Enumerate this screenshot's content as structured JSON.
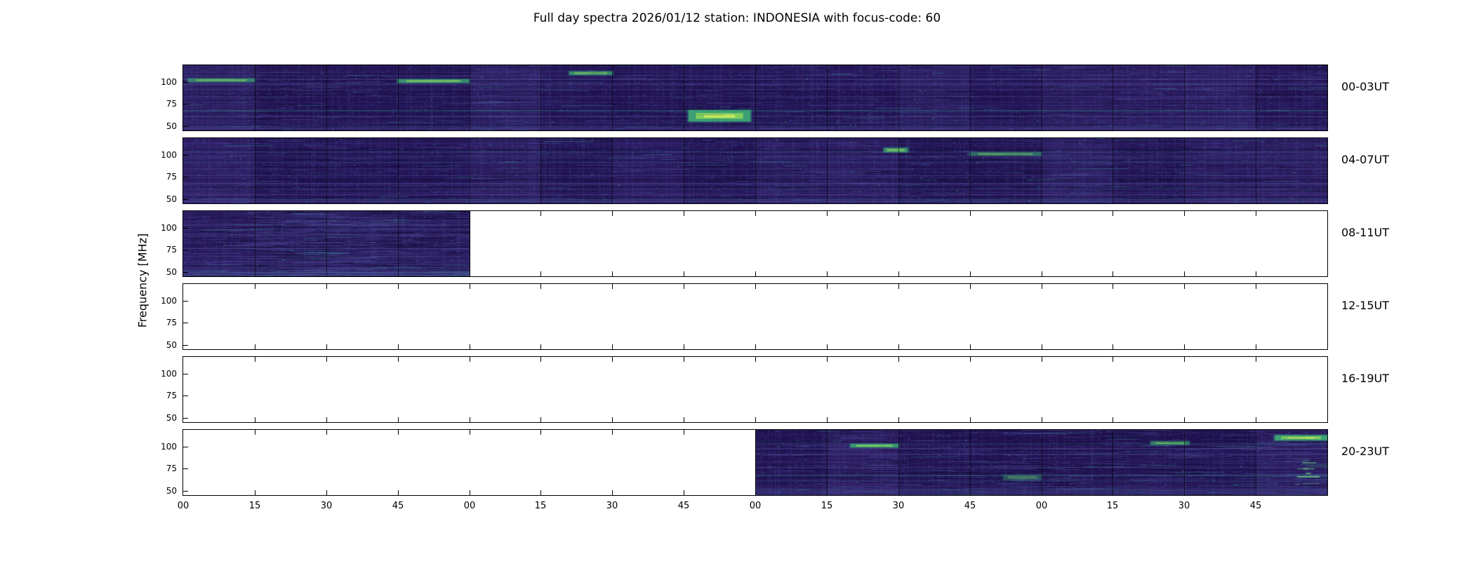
{
  "title": "Full day spectra 2026/01/12 station: INDONESIA with focus-code: 60",
  "meta": {
    "date": "2026/01/12",
    "station": "INDONESIA",
    "focus_code": "60"
  },
  "chart_data": {
    "type": "heatmap",
    "subtype": "daily-radio-spectrogram-overview",
    "title": "Full day spectra 2026/01/12 station: INDONESIA with focus-code: 60",
    "ylabel": "Frequency [MHz]",
    "colormap": "viridis",
    "background_color": "#27175c",
    "accent_color": "#35b779",
    "ylim": [
      45,
      119
    ],
    "yticks": [
      100,
      75,
      50
    ],
    "xtick_labels": [
      "00",
      "15",
      "30",
      "45",
      "00",
      "15",
      "30",
      "45",
      "00",
      "15",
      "30",
      "45",
      "00",
      "15",
      "30",
      "45"
    ],
    "segments_per_row": 16,
    "minutes_per_segment": 15,
    "rfi_freqs": [
      47,
      50,
      55,
      62,
      68,
      77,
      84,
      92,
      98,
      104
    ],
    "rows": [
      {
        "label": "00-03UT",
        "filled_segments": [
          0,
          16
        ]
      },
      {
        "label": "04-07UT",
        "filled_segments": [
          0,
          16
        ]
      },
      {
        "label": "08-11UT",
        "filled_segments": [
          0,
          4
        ]
      },
      {
        "label": "12-15UT",
        "filled_segments": null
      },
      {
        "label": "16-19UT",
        "filled_segments": null
      },
      {
        "label": "20-23UT",
        "filled_segments": [
          8,
          16
        ]
      }
    ],
    "features": [
      {
        "row": 0,
        "t0": 1,
        "t1": 15,
        "f0": 100,
        "f1": 104,
        "intensity": 0.7
      },
      {
        "row": 0,
        "t0": 45,
        "t1": 60,
        "f0": 99,
        "f1": 103,
        "intensity": 0.85
      },
      {
        "row": 0,
        "t0": 81,
        "t1": 90,
        "f0": 108,
        "f1": 112,
        "intensity": 0.8
      },
      {
        "row": 0,
        "t0": 106,
        "t1": 119,
        "f0": 55,
        "f1": 68,
        "intensity": 1.0
      },
      {
        "row": 1,
        "t0": 147,
        "t1": 152,
        "f0": 103,
        "f1": 108,
        "intensity": 0.8
      },
      {
        "row": 1,
        "t0": 165,
        "t1": 180,
        "f0": 99,
        "f1": 103,
        "intensity": 0.55
      },
      {
        "row": 5,
        "t0": 140,
        "t1": 150,
        "f0": 99,
        "f1": 103,
        "intensity": 0.9
      },
      {
        "row": 5,
        "t0": 203,
        "t1": 211,
        "f0": 102,
        "f1": 106,
        "intensity": 0.65
      },
      {
        "row": 5,
        "t0": 229,
        "t1": 240,
        "f0": 107,
        "f1": 113,
        "intensity": 1.0
      },
      {
        "row": 5,
        "t0": 172,
        "t1": 180,
        "f0": 62,
        "f1": 68,
        "intensity": 0.35
      },
      {
        "row": 5,
        "t0": 233,
        "t1": 240,
        "f0": 55,
        "f1": 85,
        "intensity": 0.7,
        "style": "dashes"
      }
    ]
  }
}
